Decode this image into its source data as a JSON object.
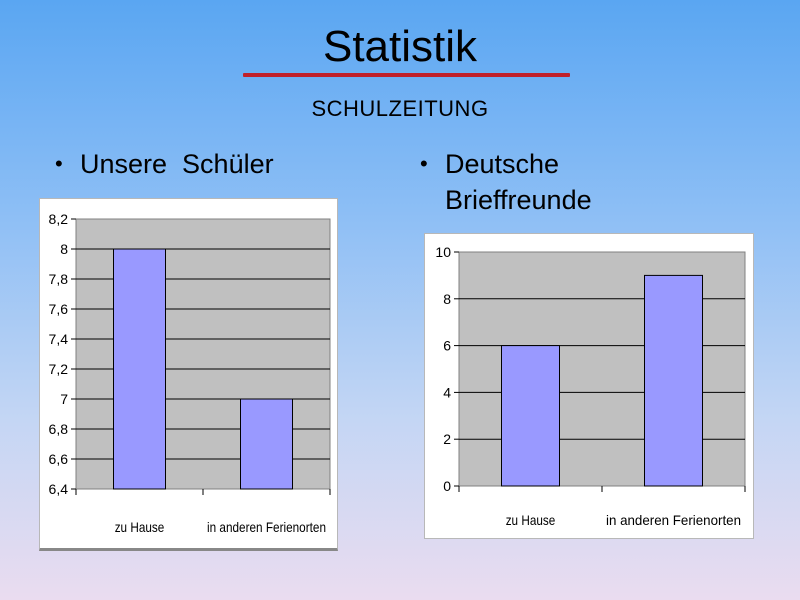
{
  "slide": {
    "title": "Statistik",
    "subtitle": "SCHULZEITUNG",
    "bullet_symbol": "•",
    "bullets": [
      {
        "text": "Unsere  Schüler"
      },
      {
        "text": "Deutsche\nBrieffreunde"
      }
    ],
    "colors": {
      "accent_rule": "#c0202a",
      "bar_fill": "#9999ff",
      "plot_bg": "#c0c0c0"
    }
  },
  "chart_data": [
    {
      "type": "bar",
      "title": "",
      "xlabel": "",
      "ylabel": "",
      "categories": [
        "zu Hause",
        "in anderen Ferienorten"
      ],
      "values": [
        8,
        7
      ],
      "ylim": [
        6.4,
        8.2
      ],
      "yticks": [
        "6,4",
        "6,6",
        "6,8",
        "7",
        "7,2",
        "7,4",
        "7,6",
        "7,8",
        "8",
        "8,2"
      ],
      "ytick_values": [
        6.4,
        6.6,
        6.8,
        7.0,
        7.2,
        7.4,
        7.6,
        7.8,
        8.0,
        8.2
      ],
      "grid": true,
      "legend": "none"
    },
    {
      "type": "bar",
      "title": "",
      "xlabel": "",
      "ylabel": "",
      "categories": [
        "zu Hause",
        "in anderen Ferienorten"
      ],
      "values": [
        6,
        9
      ],
      "ylim": [
        0,
        10
      ],
      "yticks": [
        "0",
        "2",
        "4",
        "6",
        "8",
        "10"
      ],
      "ytick_values": [
        0,
        2,
        4,
        6,
        8,
        10
      ],
      "grid": true,
      "legend": "none"
    }
  ]
}
